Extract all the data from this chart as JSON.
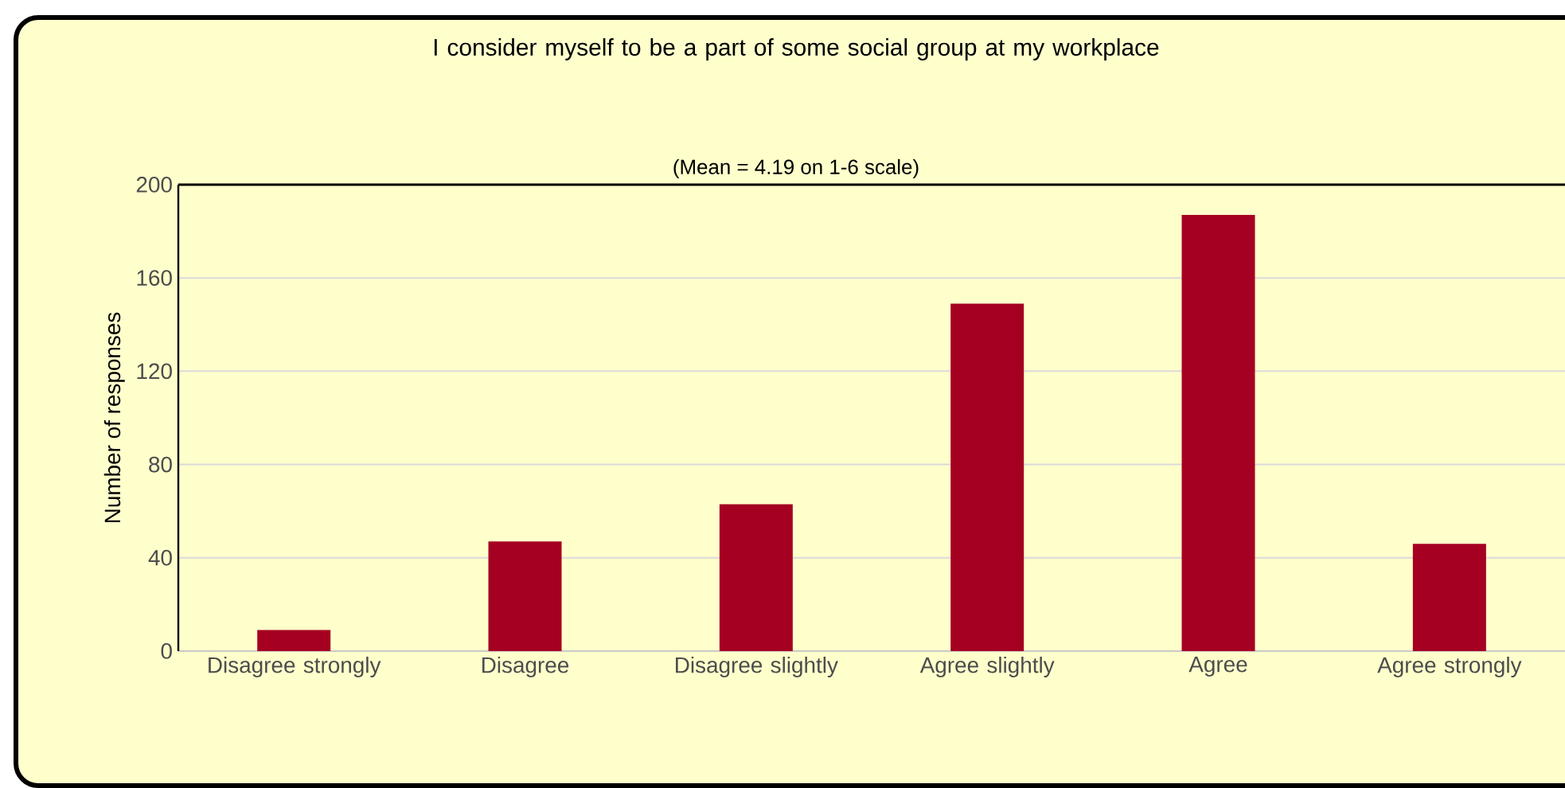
{
  "chart_data": {
    "type": "bar",
    "title": "I consider myself to be a part of some social group at my workplace",
    "subtitle": "(Mean = 4.19 on 1-6 scale)",
    "ylabel": "Number of responses",
    "categories": [
      "Disagree strongly",
      "Disagree",
      "Disagree slightly",
      "Agree slightly",
      "Agree",
      "Agree strongly"
    ],
    "values": [
      9,
      47,
      63,
      149,
      187,
      46
    ],
    "color": "#a50021",
    "ylim": [
      0,
      200
    ],
    "yticks": [
      0,
      40,
      80,
      120,
      160,
      200
    ],
    "grid": "y"
  }
}
